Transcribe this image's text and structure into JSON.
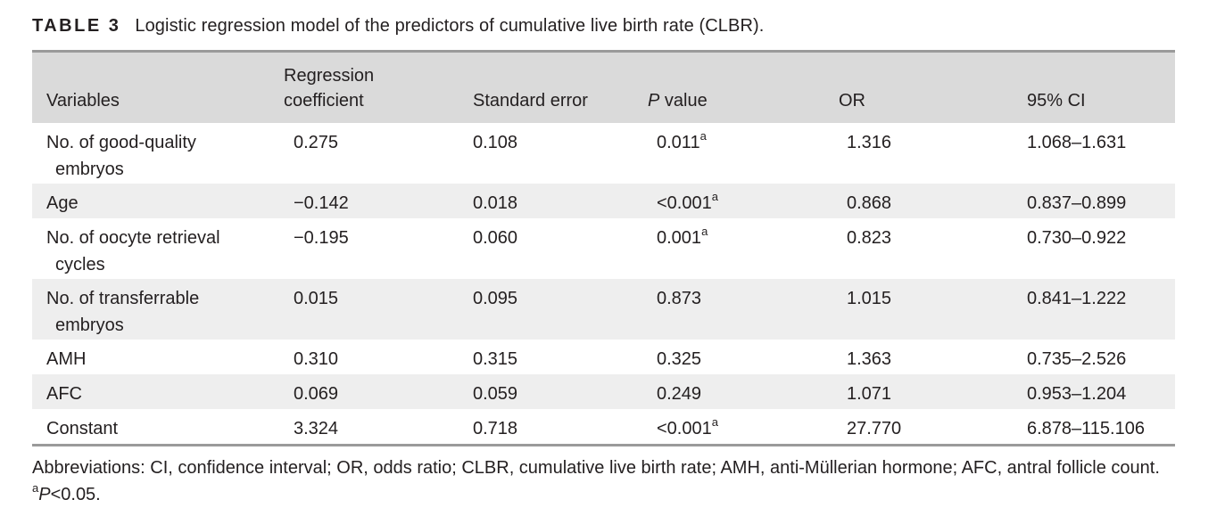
{
  "caption": {
    "label": "TABLE 3",
    "title": "Logistic regression model of the predictors of cumulative live birth rate (CLBR)."
  },
  "table": {
    "headers": {
      "variables": "Variables",
      "coef_line1": "Regression",
      "coef_line2": "coefficient",
      "se": "Standard error",
      "p_italic": "P",
      "p_rest": " value",
      "or": "OR",
      "ci": "95% CI"
    },
    "rows": [
      {
        "var_line1": "No. of good-quality",
        "var_line2": "embryos",
        "coef": "0.275",
        "se": "0.108",
        "p": "0.011",
        "p_sup": "a",
        "or": "1.316",
        "ci": "1.068–1.631"
      },
      {
        "var_line1": "Age",
        "var_line2": "",
        "coef": "−0.142",
        "se": "0.018",
        "p": "<0.001",
        "p_sup": "a",
        "or": "0.868",
        "ci": "0.837–0.899"
      },
      {
        "var_line1": "No. of oocyte retrieval",
        "var_line2": "cycles",
        "coef": "−0.195",
        "se": "0.060",
        "p": "0.001",
        "p_sup": "a",
        "or": "0.823",
        "ci": "0.730–0.922"
      },
      {
        "var_line1": "No. of transferrable",
        "var_line2": "embryos",
        "coef": "0.015",
        "se": "0.095",
        "p": "0.873",
        "p_sup": "",
        "or": "1.015",
        "ci": "0.841–1.222"
      },
      {
        "var_line1": "AMH",
        "var_line2": "",
        "coef": "0.310",
        "se": "0.315",
        "p": "0.325",
        "p_sup": "",
        "or": "1.363",
        "ci": "0.735–2.526"
      },
      {
        "var_line1": "AFC",
        "var_line2": "",
        "coef": "0.069",
        "se": "0.059",
        "p": "0.249",
        "p_sup": "",
        "or": "1.071",
        "ci": "0.953–1.204"
      },
      {
        "var_line1": "Constant",
        "var_line2": "",
        "coef": "3.324",
        "se": "0.718",
        "p": "<0.001",
        "p_sup": "a",
        "or": "27.770",
        "ci": "6.878–115.106"
      }
    ]
  },
  "footnotes": {
    "abbreviations": "Abbreviations: CI, confidence interval; OR, odds ratio; CLBR, cumulative live birth rate; AMH, anti-Müllerian hormone; AFC, antral follicle count.",
    "sig_sup": "a",
    "sig_italic": "P",
    "sig_rest": "<0.05."
  },
  "colors": {
    "header_bg": "#dadada",
    "stripe_bg": "#eeeeee",
    "rule": "#9a9a9a",
    "text": "#231f20"
  }
}
